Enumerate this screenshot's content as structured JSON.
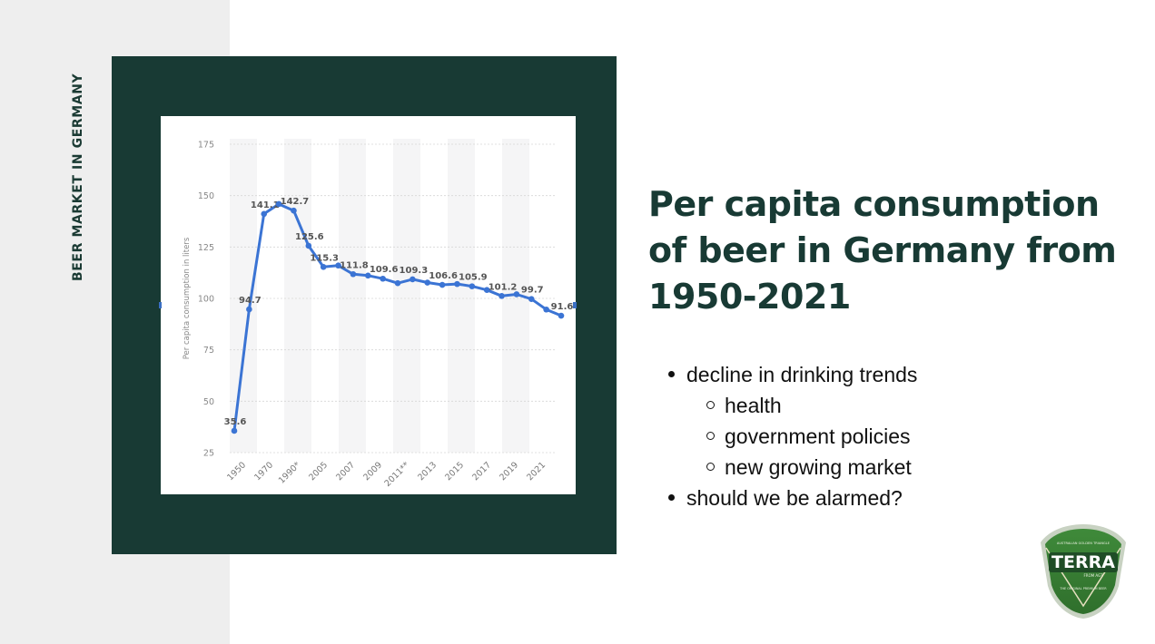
{
  "side_title": "BEER MARKET IN GERMANY",
  "headline": "Per capita consumption of beer in Germany from 1950-2021",
  "bullets": [
    {
      "text": "decline in drinking trends",
      "level": 1
    },
    {
      "text": "health",
      "level": 2
    },
    {
      "text": "government policies",
      "level": 2
    },
    {
      "text": "new growing market",
      "level": 2
    },
    {
      "text": "should we be alarmed?",
      "level": 1
    }
  ],
  "logo": {
    "brand": "TERRA",
    "sub": "FROM AGT",
    "top_ring": "AUSTRALIAN GOLDEN TRIANGLE",
    "bottom_ring": "THE ORIGINAL PREMIUM BEER"
  },
  "colors": {
    "dark_green": "#183a34",
    "line_blue": "#3b74d4",
    "strip_gray": "#eeeeee"
  },
  "chart_data": {
    "type": "line",
    "title": "",
    "xlabel": "",
    "ylabel": "Per capita consumption in liters",
    "ylim": [
      25,
      175
    ],
    "yticks": [
      25,
      50,
      75,
      100,
      125,
      150,
      175
    ],
    "xtick_labels": [
      "1950",
      "1970",
      "1990*",
      "2005",
      "2007",
      "2009",
      "2011**",
      "2013",
      "2015",
      "2017",
      "2019",
      "2021"
    ],
    "points": [
      {
        "label": "1950",
        "value": 35.6,
        "show_label": true
      },
      {
        "label": "1960",
        "value": 94.7,
        "show_label": true
      },
      {
        "label": "1970",
        "value": 141.1,
        "show_label": true
      },
      {
        "label": "1980",
        "value": 145.9,
        "show_label": false
      },
      {
        "label": "1990*",
        "value": 142.7,
        "show_label": true
      },
      {
        "label": "2000",
        "value": 125.6,
        "show_label": true
      },
      {
        "label": "2005",
        "value": 115.3,
        "show_label": true
      },
      {
        "label": "2006",
        "value": 116.0,
        "show_label": false
      },
      {
        "label": "2007",
        "value": 111.8,
        "show_label": true
      },
      {
        "label": "2008",
        "value": 111.1,
        "show_label": false
      },
      {
        "label": "2009",
        "value": 109.6,
        "show_label": true
      },
      {
        "label": "2010",
        "value": 107.4,
        "show_label": false
      },
      {
        "label": "2011**",
        "value": 109.3,
        "show_label": true
      },
      {
        "label": "2012",
        "value": 107.7,
        "show_label": false
      },
      {
        "label": "2013",
        "value": 106.6,
        "show_label": true
      },
      {
        "label": "2014",
        "value": 107.0,
        "show_label": false
      },
      {
        "label": "2015",
        "value": 105.9,
        "show_label": true
      },
      {
        "label": "2016",
        "value": 104.1,
        "show_label": false
      },
      {
        "label": "2017",
        "value": 101.2,
        "show_label": true
      },
      {
        "label": "2018",
        "value": 102.0,
        "show_label": false
      },
      {
        "label": "2019",
        "value": 99.7,
        "show_label": true
      },
      {
        "label": "2020",
        "value": 94.6,
        "show_label": false
      },
      {
        "label": "2021",
        "value": 91.6,
        "show_label": true
      }
    ]
  }
}
